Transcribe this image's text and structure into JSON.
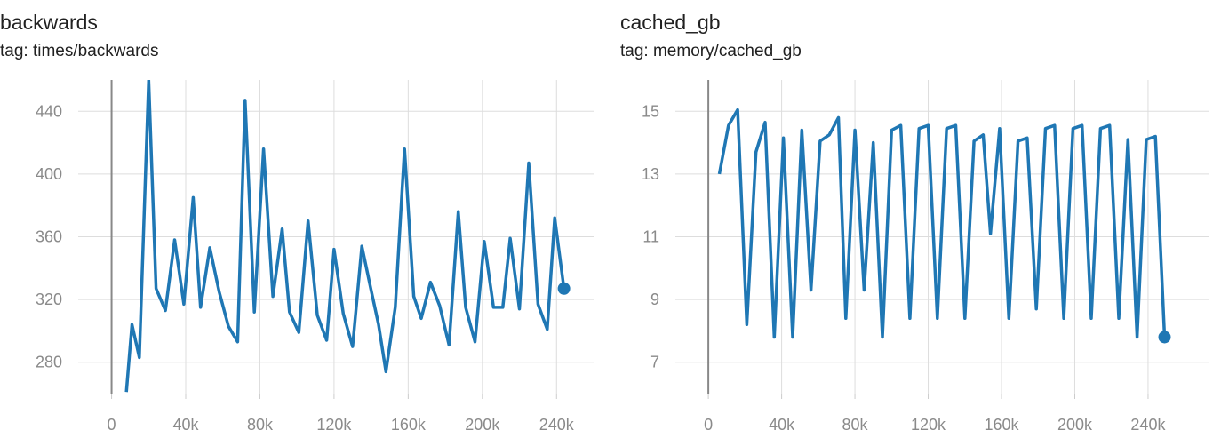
{
  "chart_data": [
    {
      "type": "line",
      "title": "backwards",
      "subtitle": "tag: times/backwards",
      "color": "#1f77b4",
      "x": [
        8000,
        11000,
        15000,
        20000,
        24000,
        29000,
        34000,
        39000,
        44000,
        48000,
        53000,
        58000,
        63000,
        68000,
        72000,
        77000,
        82000,
        87000,
        92000,
        96000,
        101000,
        106000,
        111000,
        116000,
        120000,
        125000,
        130000,
        135000,
        140000,
        144000,
        148000,
        153000,
        158000,
        163000,
        167000,
        172000,
        177000,
        182000,
        187000,
        191000,
        196000,
        201000,
        206000,
        211000,
        215000,
        220000,
        225000,
        230000,
        235000,
        239000,
        244000
      ],
      "values": [
        261,
        304,
        283,
        460,
        327,
        313,
        358,
        317,
        385,
        315,
        353,
        325,
        303,
        293,
        447,
        312,
        416,
        322,
        365,
        312,
        299,
        370,
        310,
        294,
        352,
        311,
        290,
        354,
        326,
        304,
        274,
        315,
        416,
        322,
        308,
        331,
        316,
        291,
        376,
        315,
        293,
        357,
        315,
        315,
        359,
        314,
        407,
        317,
        301,
        372,
        327
      ],
      "xlim": [
        -18000,
        260000
      ],
      "ylim": [
        260,
        460
      ],
      "xticks": [
        0,
        {
          "value": 40000,
          "label": "40k"
        },
        {
          "value": 80000,
          "label": "80k"
        },
        {
          "value": 120000,
          "label": "120k"
        },
        {
          "value": 160000,
          "label": "160k"
        },
        {
          "value": 200000,
          "label": "200k"
        },
        {
          "value": 240000,
          "label": "240k"
        }
      ],
      "yticks": [
        280,
        320,
        360,
        400,
        440
      ],
      "grid": true
    },
    {
      "type": "line",
      "title": "cached_gb",
      "subtitle": "tag: memory/cached_gb",
      "color": "#1f77b4",
      "x": [
        6000,
        11000,
        16000,
        21000,
        26000,
        31000,
        36000,
        41000,
        46000,
        51000,
        56000,
        61000,
        66000,
        71000,
        75000,
        80000,
        85000,
        90000,
        95000,
        100000,
        105000,
        110000,
        115000,
        120000,
        125000,
        130000,
        135000,
        140000,
        145000,
        150000,
        154000,
        159000,
        164000,
        169000,
        174000,
        179000,
        184000,
        189000,
        194000,
        199000,
        204000,
        209000,
        214000,
        219000,
        224000,
        229000,
        234000,
        239000,
        244000,
        249000
      ],
      "values": [
        13.0,
        14.55,
        15.05,
        8.2,
        13.7,
        14.65,
        7.8,
        14.15,
        7.8,
        14.4,
        9.3,
        14.05,
        14.25,
        14.8,
        8.4,
        14.4,
        9.3,
        14.0,
        7.8,
        14.4,
        14.55,
        8.4,
        14.45,
        14.55,
        8.4,
        14.45,
        14.55,
        8.4,
        14.05,
        14.25,
        11.1,
        14.45,
        8.4,
        14.05,
        14.15,
        8.7,
        14.45,
        14.55,
        8.4,
        14.45,
        14.55,
        8.4,
        14.45,
        14.55,
        8.4,
        14.1,
        7.8,
        14.1,
        14.2,
        7.8
      ],
      "xlim": [
        -18000,
        273000
      ],
      "ylim": [
        6,
        16
      ],
      "xticks": [
        0,
        {
          "value": 40000,
          "label": "40k"
        },
        {
          "value": 80000,
          "label": "80k"
        },
        {
          "value": 120000,
          "label": "120k"
        },
        {
          "value": 160000,
          "label": "160k"
        },
        {
          "value": 200000,
          "label": "200k"
        },
        {
          "value": 240000,
          "label": "240k"
        }
      ],
      "yticks": [
        7,
        9,
        11,
        13,
        15
      ],
      "grid": true
    }
  ]
}
